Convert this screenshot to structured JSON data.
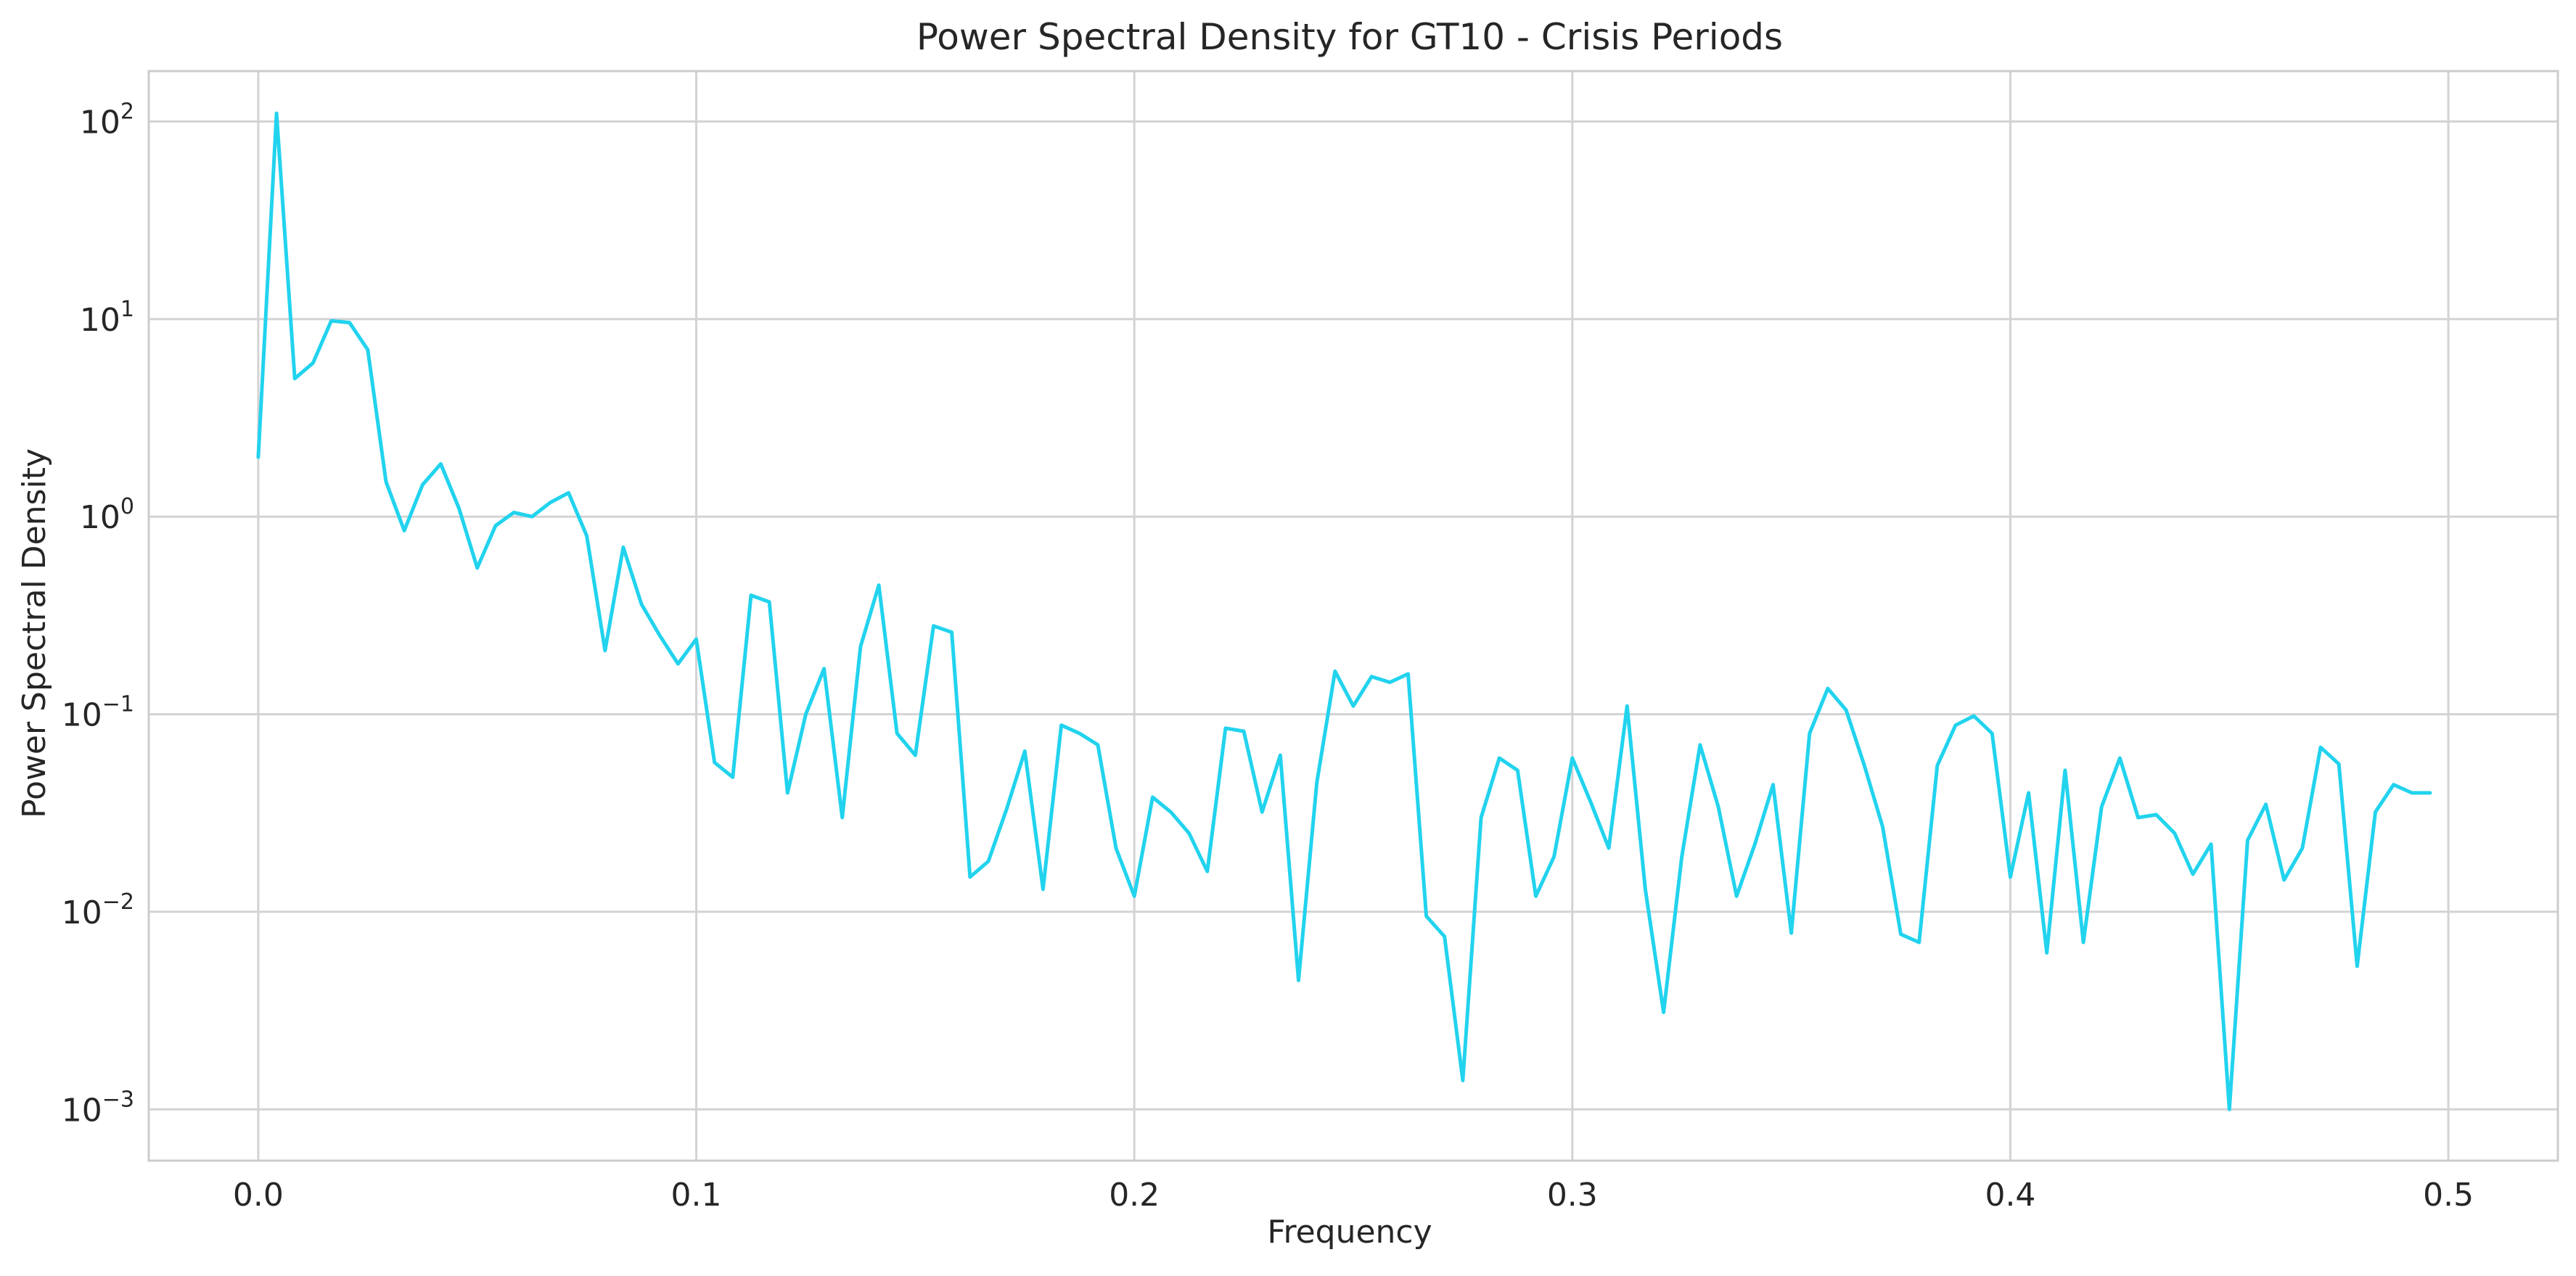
{
  "chart_data": {
    "type": "line",
    "title": "Power Spectral Density for GT10 - Crisis Periods",
    "xlabel": "Frequency",
    "ylabel": "Power Spectral Density",
    "xlim": [
      -0.025,
      0.525
    ],
    "ylim": [
      0.00055,
      180
    ],
    "yscale": "log",
    "grid": true,
    "legend": "none",
    "line_color": "#22d3ee",
    "x_ticks": [
      {
        "value": 0.0,
        "label": "0.0"
      },
      {
        "value": 0.1,
        "label": "0.1"
      },
      {
        "value": 0.2,
        "label": "0.2"
      },
      {
        "value": 0.3,
        "label": "0.3"
      },
      {
        "value": 0.4,
        "label": "0.4"
      },
      {
        "value": 0.5,
        "label": "0.5"
      }
    ],
    "y_ticks": [
      {
        "value": 0.001,
        "base": "10",
        "exp": "−3"
      },
      {
        "value": 0.01,
        "base": "10",
        "exp": "−2"
      },
      {
        "value": 0.1,
        "base": "10",
        "exp": "−1"
      },
      {
        "value": 1,
        "base": "10",
        "exp": "0"
      },
      {
        "value": 10,
        "base": "10",
        "exp": "1"
      },
      {
        "value": 100,
        "base": "10",
        "exp": "2"
      }
    ],
    "series": [
      {
        "x": [
          0.0,
          0.00417,
          0.00833,
          0.0125,
          0.01667,
          0.02083,
          0.025,
          0.02917,
          0.03333,
          0.0375,
          0.04167,
          0.04583,
          0.05,
          0.05417,
          0.05833,
          0.0625,
          0.06667,
          0.07083,
          0.075,
          0.07917,
          0.08333,
          0.0875,
          0.09167,
          0.09583,
          0.1,
          0.10417,
          0.10833,
          0.1125,
          0.11667,
          0.12083,
          0.125,
          0.12917,
          0.13333,
          0.1375,
          0.14167,
          0.14583,
          0.15,
          0.15417,
          0.15833,
          0.1625,
          0.16667,
          0.17083,
          0.175,
          0.17917,
          0.18333,
          0.1875,
          0.19167,
          0.19583,
          0.2,
          0.20417,
          0.20833,
          0.2125,
          0.21667,
          0.22083,
          0.225,
          0.22917,
          0.23333,
          0.2375,
          0.24167,
          0.24583,
          0.25,
          0.25417,
          0.25833,
          0.2625,
          0.26667,
          0.27083,
          0.275,
          0.27917,
          0.28333,
          0.2875,
          0.29167,
          0.29583,
          0.3,
          0.30417,
          0.30833,
          0.3125,
          0.31667,
          0.32083,
          0.325,
          0.32917,
          0.33333,
          0.3375,
          0.34167,
          0.34583,
          0.35,
          0.35417,
          0.35833,
          0.3625,
          0.36667,
          0.37083,
          0.375,
          0.37917,
          0.38333,
          0.3875,
          0.39167,
          0.39583,
          0.4,
          0.40417,
          0.40833,
          0.4125,
          0.41667,
          0.42083,
          0.425,
          0.42917,
          0.43333,
          0.4375,
          0.44167,
          0.44583,
          0.45,
          0.45417,
          0.45833,
          0.4625,
          0.46667,
          0.47083,
          0.475,
          0.47917,
          0.48333,
          0.4875,
          0.49167,
          0.49583
        ],
        "y": [
          2.0,
          110,
          5.0,
          6.0,
          9.8,
          9.6,
          7.0,
          1.5,
          0.85,
          1.45,
          1.85,
          1.1,
          0.55,
          0.9,
          1.05,
          1.0,
          1.18,
          1.32,
          0.8,
          0.21,
          0.7,
          0.36,
          0.25,
          0.18,
          0.24,
          0.057,
          0.048,
          0.4,
          0.37,
          0.04,
          0.1,
          0.17,
          0.03,
          0.22,
          0.45,
          0.08,
          0.062,
          0.28,
          0.26,
          0.015,
          0.018,
          0.033,
          0.065,
          0.013,
          0.088,
          0.08,
          0.07,
          0.021,
          0.012,
          0.038,
          0.032,
          0.025,
          0.016,
          0.085,
          0.082,
          0.032,
          0.062,
          0.0045,
          0.045,
          0.165,
          0.11,
          0.155,
          0.145,
          0.16,
          0.0095,
          0.0075,
          0.0014,
          0.03,
          0.06,
          0.052,
          0.012,
          0.019,
          0.06,
          0.036,
          0.021,
          0.11,
          0.013,
          0.0031,
          0.019,
          0.07,
          0.034,
          0.012,
          0.022,
          0.044,
          0.0078,
          0.08,
          0.135,
          0.105,
          0.055,
          0.027,
          0.0077,
          0.007,
          0.055,
          0.088,
          0.098,
          0.08,
          0.015,
          0.04,
          0.0062,
          0.052,
          0.007,
          0.034,
          0.06,
          0.03,
          0.031,
          0.025,
          0.0155,
          0.022,
          0.001,
          0.023,
          0.035,
          0.0145,
          0.021,
          0.068,
          0.056,
          0.0053,
          0.032,
          0.044,
          0.04,
          0.04
        ]
      }
    ]
  }
}
